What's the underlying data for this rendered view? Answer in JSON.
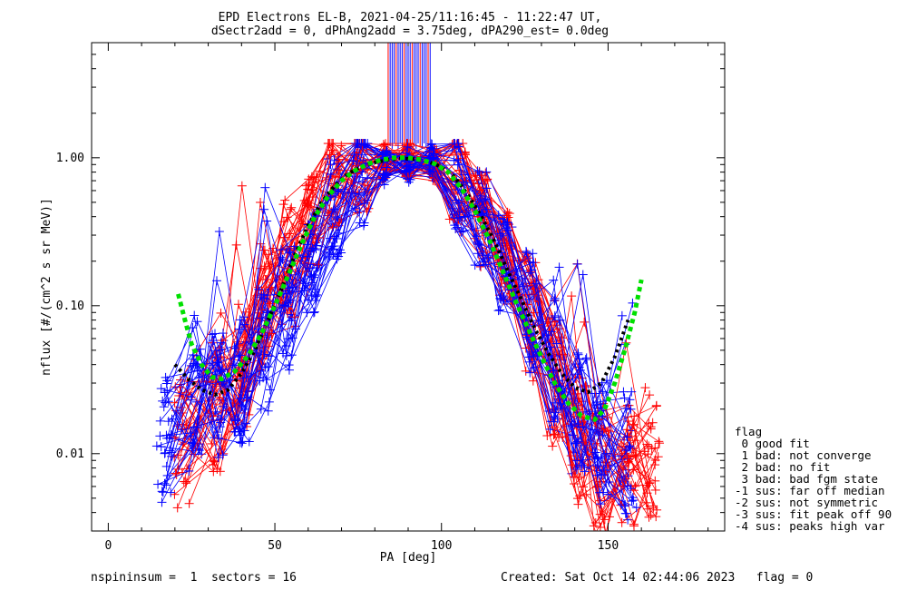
{
  "header": {
    "title_line1": "EPD Electrons EL-B, 2021-04-25/11:16:45 - 11:22:47 UT,",
    "title_line2": "dSectr2add = 0, dPhAng2add = 3.75deg, dPA290_est=   0.0deg"
  },
  "footer": {
    "left": "nspininsum =  1  sectors = 16",
    "right": "Created: Sat Oct 14 02:44:06 2023   flag = 0"
  },
  "flag_legend": {
    "title": "flag",
    "lines": [
      " 0 good fit",
      " 1 bad: not converge",
      " 2 bad: no fit",
      " 3 bad: bad fgm state",
      "-1 sus: far off median",
      "-2 sus: not symmetric",
      "-3 sus: fit peak off 90",
      "-4 sus: peaks high var"
    ]
  },
  "colors": {
    "red": "#ff0000",
    "blue": "#0000ff",
    "green": "#00e000",
    "black": "#000000"
  },
  "chart_data": {
    "type": "line",
    "xlabel": "PA [deg]",
    "ylabel": "nflux [#/(cm^2 s sr MeV)]",
    "xlim": [
      -5,
      185
    ],
    "ylim": [
      0.003,
      6.0
    ],
    "yscale": "log",
    "x_ticks": [
      0,
      50,
      100,
      150
    ],
    "x_tick_labels": [
      "0",
      "50",
      "100",
      "150"
    ],
    "y_ticks": [
      0.01,
      0.1,
      1.0
    ],
    "y_tick_labels": [
      "0.01",
      "0.10",
      "1.00"
    ],
    "grid": false,
    "legend": "right-outside",
    "series_groups": [
      {
        "color": "red",
        "pa_left": [
          22,
          33,
          40,
          47,
          54,
          61,
          68,
          76,
          83,
          90
        ],
        "pa_right": [
          90,
          98,
          105,
          112,
          119,
          127,
          134,
          141,
          148,
          156,
          163
        ],
        "typical_flux_left": [
          0.012,
          0.02,
          0.04,
          0.1,
          0.2,
          0.38,
          0.65,
          0.85,
          0.95,
          0.98
        ],
        "typical_flux_right": [
          0.98,
          0.9,
          0.7,
          0.4,
          0.2,
          0.08,
          0.03,
          0.012,
          0.008,
          0.008,
          0.01
        ]
      },
      {
        "color": "blue",
        "pa_left": [
          17,
          26,
          33,
          40,
          47,
          54,
          61,
          68,
          76,
          83,
          90
        ],
        "pa_right": [
          90,
          97,
          105,
          112,
          119,
          127,
          134,
          141,
          148,
          156
        ],
        "typical_flux_left": [
          0.012,
          0.02,
          0.025,
          0.03,
          0.05,
          0.09,
          0.2,
          0.45,
          0.75,
          0.85,
          0.9
        ],
        "typical_flux_right": [
          0.9,
          0.95,
          0.7,
          0.4,
          0.2,
          0.09,
          0.04,
          0.018,
          0.012,
          0.01
        ]
      }
    ],
    "fit_green": {
      "x": [
        21,
        23,
        25,
        28,
        31,
        34,
        38,
        42,
        46,
        50,
        54,
        58,
        62,
        66,
        70,
        74,
        78,
        82,
        86,
        90,
        94,
        98,
        102,
        106,
        110,
        114,
        118,
        122,
        126,
        130,
        134,
        138,
        142,
        146,
        149,
        152,
        155,
        158,
        160
      ],
      "y": [
        0.12,
        0.08,
        0.055,
        0.04,
        0.033,
        0.032,
        0.036,
        0.046,
        0.065,
        0.1,
        0.16,
        0.26,
        0.4,
        0.55,
        0.7,
        0.82,
        0.91,
        0.97,
        1.0,
        1.0,
        0.97,
        0.91,
        0.8,
        0.62,
        0.44,
        0.29,
        0.18,
        0.11,
        0.07,
        0.045,
        0.03,
        0.022,
        0.018,
        0.017,
        0.02,
        0.03,
        0.05,
        0.09,
        0.15
      ]
    },
    "fit_black": {
      "x": [
        20,
        24,
        28,
        32,
        36,
        40,
        44,
        48,
        52,
        56,
        60,
        64,
        68,
        72,
        76,
        80,
        84,
        88,
        92,
        96,
        100,
        104,
        108,
        112,
        116,
        120,
        124,
        128,
        132,
        136,
        140,
        144,
        148,
        152,
        156
      ],
      "y": [
        0.04,
        0.032,
        0.027,
        0.025,
        0.027,
        0.035,
        0.05,
        0.08,
        0.13,
        0.22,
        0.35,
        0.5,
        0.65,
        0.78,
        0.87,
        0.93,
        0.97,
        0.99,
        0.98,
        0.94,
        0.87,
        0.74,
        0.56,
        0.4,
        0.27,
        0.17,
        0.11,
        0.07,
        0.048,
        0.035,
        0.028,
        0.026,
        0.03,
        0.045,
        0.08
      ]
    }
  }
}
